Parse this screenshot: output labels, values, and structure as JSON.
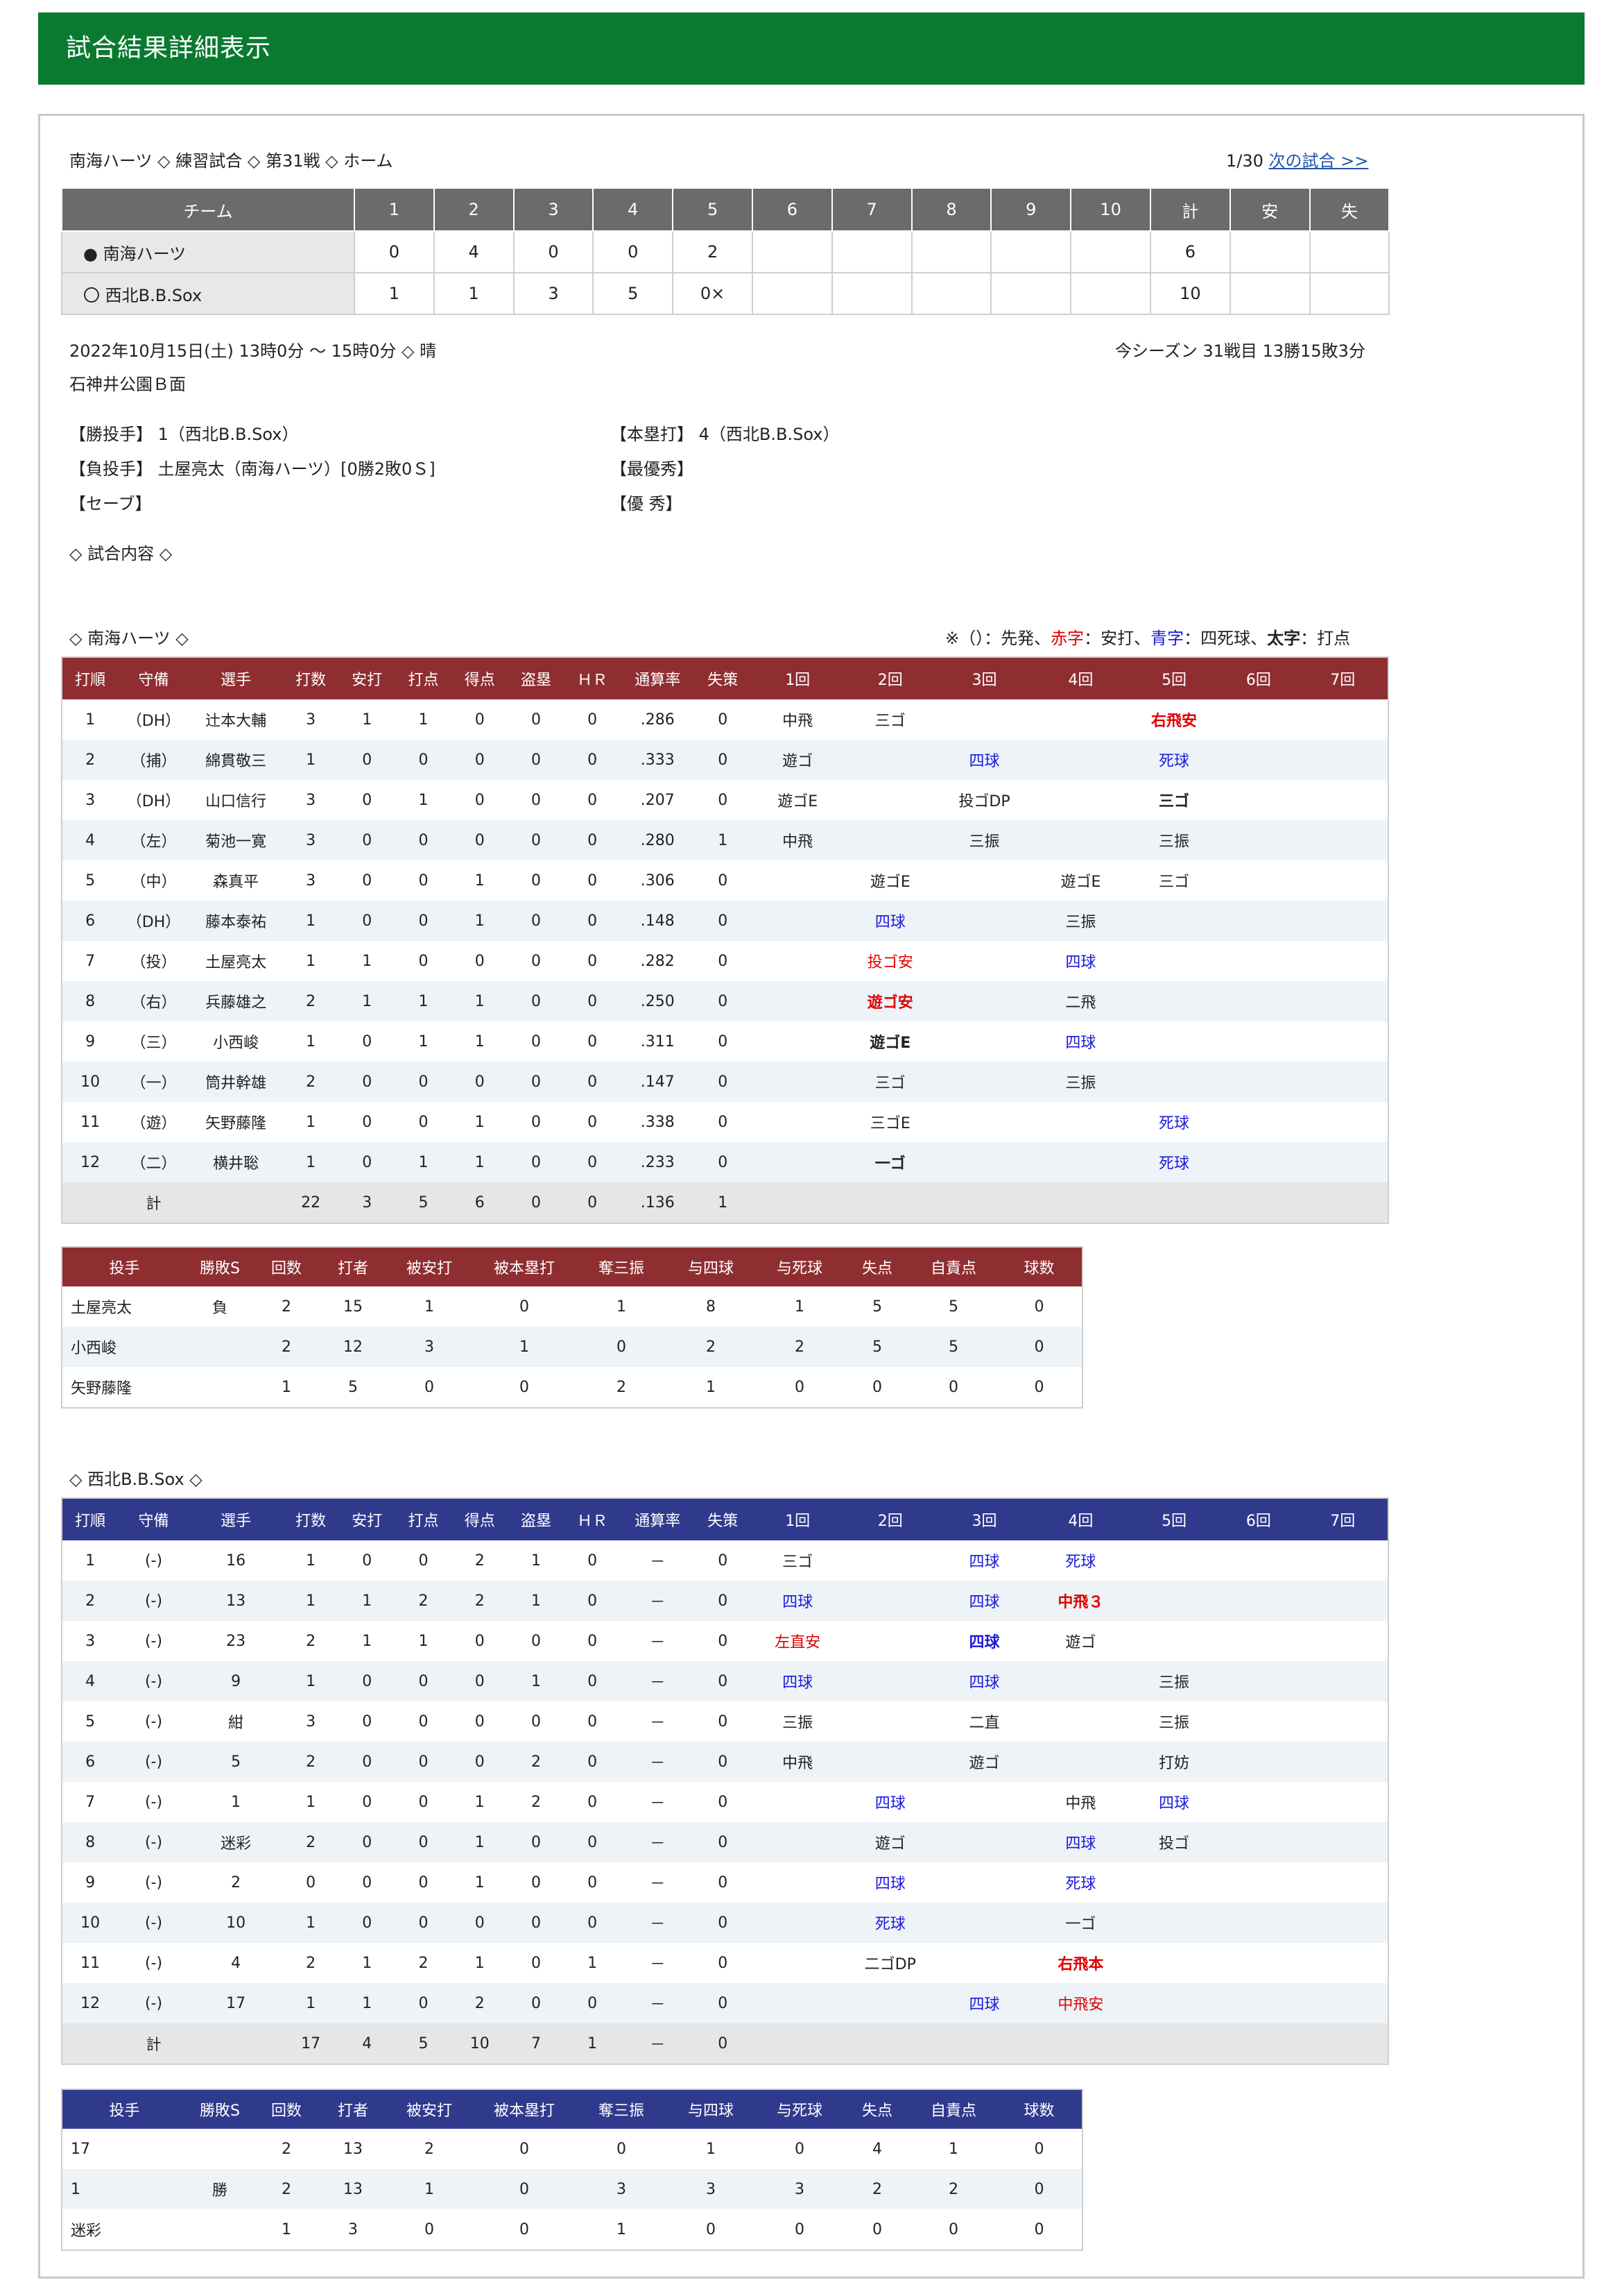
{
  "header": {
    "title": "試合結果詳細表示"
  },
  "match": {
    "line": "南海ハーツ ◇ 練習試合 ◇ 第31戦 ◇ ホーム",
    "pager": "1/30",
    "next": "次の試合 >>",
    "datetime": "2022年10月15日(土) 13時0分 ～ 15時0分 ◇ 晴",
    "season": "今シーズン 31戦目 13勝15敗3分",
    "venue": "石神井公園Ｂ面",
    "win_pitcher": "【勝投手】 1（西北B.B.Sox）",
    "lose_pitcher": "【負投手】 土屋亮太（南海ハーツ）[0勝2敗0Ｓ]",
    "save": "【セーブ】",
    "homerun": "【本塁打】 4（西北B.B.Sox）",
    "mvp": "【最優秀】",
    "excellent": "【優 秀】",
    "contents": "◇ 試合内容 ◇"
  },
  "score": {
    "headers": [
      "チーム",
      "1",
      "2",
      "3",
      "4",
      "5",
      "6",
      "7",
      "8",
      "9",
      "10",
      "計",
      "安",
      "失"
    ],
    "rows": [
      {
        "team": "● 南海ハーツ",
        "cells": [
          "0",
          "4",
          "0",
          "0",
          "2",
          "",
          "",
          "",
          "",
          "",
          "6",
          "",
          ""
        ]
      },
      {
        "team": "〇 西北B.B.Sox",
        "cells": [
          "1",
          "1",
          "3",
          "5",
          "0×",
          "",
          "",
          "",
          "",
          "",
          "10",
          "",
          ""
        ]
      }
    ]
  },
  "legend": {
    "pre": "※（）：先発、",
    "red": "赤字",
    "mid1": "：安打、",
    "blue": "青字",
    "mid2": "：四死球、",
    "bold": "太字",
    "post": "：打点"
  },
  "home": {
    "label": "◇ 南海ハーツ ◇",
    "headers": [
      "打順",
      "守備",
      "選手",
      "打数",
      "安打",
      "打点",
      "得点",
      "盗塁",
      "ＨＲ",
      "通算率",
      "失策",
      "1回",
      "2回",
      "3回",
      "4回",
      "5回",
      "6回",
      "7回"
    ],
    "rows": [
      [
        "1",
        "（DH）",
        "辻本大輔",
        "3",
        "1",
        "1",
        "0",
        "0",
        "0",
        ".286",
        "0",
        "中飛",
        "三ゴ",
        "",
        "",
        "右飛安",
        "",
        ""
      ],
      [
        "2",
        "（捕）",
        "綿貫敬三",
        "1",
        "0",
        "0",
        "0",
        "0",
        "0",
        ".333",
        "0",
        "遊ゴ",
        "",
        "四球",
        "",
        "死球",
        "",
        ""
      ],
      [
        "3",
        "（DH）",
        "山口信行",
        "3",
        "0",
        "1",
        "0",
        "0",
        "0",
        ".207",
        "0",
        "遊ゴE",
        "",
        "投ゴDP",
        "",
        "三ゴ",
        "",
        ""
      ],
      [
        "4",
        "（左）",
        "菊池一寛",
        "3",
        "0",
        "0",
        "0",
        "0",
        "0",
        ".280",
        "1",
        "中飛",
        "",
        "三振",
        "",
        "三振",
        "",
        ""
      ],
      [
        "5",
        "（中）",
        "森真平",
        "3",
        "0",
        "0",
        "1",
        "0",
        "0",
        ".306",
        "0",
        "",
        "遊ゴE",
        "",
        "遊ゴE",
        "三ゴ",
        "",
        ""
      ],
      [
        "6",
        "（DH）",
        "藤本泰祐",
        "1",
        "0",
        "0",
        "1",
        "0",
        "0",
        ".148",
        "0",
        "",
        "四球",
        "",
        "三振",
        "",
        "",
        ""
      ],
      [
        "7",
        "（投）",
        "土屋亮太",
        "1",
        "1",
        "0",
        "0",
        "0",
        "0",
        ".282",
        "0",
        "",
        "投ゴ安",
        "",
        "四球",
        "",
        "",
        ""
      ],
      [
        "8",
        "（右）",
        "兵藤雄之",
        "2",
        "1",
        "1",
        "1",
        "0",
        "0",
        ".250",
        "0",
        "",
        "遊ゴ安",
        "",
        "二飛",
        "",
        "",
        ""
      ],
      [
        "9",
        "（三）",
        "小西峻",
        "1",
        "0",
        "1",
        "1",
        "0",
        "0",
        ".311",
        "0",
        "",
        "遊ゴE",
        "",
        "四球",
        "",
        "",
        ""
      ],
      [
        "10",
        "（一）",
        "筒井幹雄",
        "2",
        "0",
        "0",
        "0",
        "0",
        "0",
        ".147",
        "0",
        "",
        "三ゴ",
        "",
        "三振",
        "",
        "",
        ""
      ],
      [
        "11",
        "（遊）",
        "矢野藤隆",
        "1",
        "0",
        "0",
        "1",
        "0",
        "0",
        ".338",
        "0",
        "",
        "三ゴE",
        "",
        "",
        "死球",
        "",
        ""
      ],
      [
        "12",
        "（二）",
        "横井聡",
        "1",
        "0",
        "1",
        "1",
        "0",
        "0",
        ".233",
        "0",
        "",
        "一ゴ",
        "",
        "",
        "死球",
        "",
        ""
      ]
    ],
    "styles": [
      [
        "",
        "",
        "",
        "",
        "rb",
        "",
        ""
      ],
      [
        "",
        "",
        "b",
        "",
        "b",
        "",
        ""
      ],
      [
        "",
        "",
        "",
        "",
        "bold",
        "",
        ""
      ],
      [
        "",
        "",
        "",
        "",
        "",
        "",
        ""
      ],
      [
        "",
        "",
        "",
        "",
        "",
        "",
        ""
      ],
      [
        "",
        "b",
        "",
        "",
        "",
        "",
        ""
      ],
      [
        "",
        "r",
        "",
        "b",
        "",
        "",
        ""
      ],
      [
        "",
        "rb",
        "",
        "",
        "",
        "",
        ""
      ],
      [
        "",
        "bold",
        "",
        "b",
        "",
        "",
        ""
      ],
      [
        "",
        "",
        "",
        "",
        "",
        "",
        ""
      ],
      [
        "",
        "",
        "",
        "",
        "b",
        "",
        ""
      ],
      [
        "",
        "bold",
        "",
        "",
        "b",
        "",
        ""
      ]
    ],
    "total": [
      "",
      "計",
      "",
      "22",
      "3",
      "5",
      "6",
      "0",
      "0",
      ".136",
      "1",
      "",
      "",
      "",
      "",
      "",
      "",
      ""
    ],
    "pitchers": {
      "headers": [
        "投手",
        "勝敗S",
        "回数",
        "打者",
        "被安打",
        "被本塁打",
        "奪三振",
        "与四球",
        "与死球",
        "失点",
        "自責点",
        "球数"
      ],
      "rows": [
        [
          "土屋亮太",
          "負",
          "2",
          "15",
          "1",
          "0",
          "1",
          "8",
          "1",
          "5",
          "5",
          "0"
        ],
        [
          "小西峻",
          "",
          "2",
          "12",
          "3",
          "1",
          "0",
          "2",
          "2",
          "5",
          "5",
          "0"
        ],
        [
          "矢野藤隆",
          "",
          "1",
          "5",
          "0",
          "0",
          "2",
          "1",
          "0",
          "0",
          "0",
          "0"
        ]
      ]
    }
  },
  "away": {
    "label": "◇ 西北B.B.Sox ◇",
    "headers": [
      "打順",
      "守備",
      "選手",
      "打数",
      "安打",
      "打点",
      "得点",
      "盗塁",
      "ＨＲ",
      "通算率",
      "失策",
      "1回",
      "2回",
      "3回",
      "4回",
      "5回",
      "6回",
      "7回"
    ],
    "rows": [
      [
        "1",
        "(-)",
        "16",
        "1",
        "0",
        "0",
        "2",
        "1",
        "0",
        "－",
        "0",
        "三ゴ",
        "",
        "四球",
        "死球",
        "",
        "",
        ""
      ],
      [
        "2",
        "(-)",
        "13",
        "1",
        "1",
        "2",
        "2",
        "1",
        "0",
        "－",
        "0",
        "四球",
        "",
        "四球",
        "中飛３",
        "",
        "",
        ""
      ],
      [
        "3",
        "(-)",
        "23",
        "2",
        "1",
        "1",
        "0",
        "0",
        "0",
        "－",
        "0",
        "左直安",
        "",
        "四球",
        "遊ゴ",
        "",
        "",
        ""
      ],
      [
        "4",
        "(-)",
        "9",
        "1",
        "0",
        "0",
        "0",
        "1",
        "0",
        "－",
        "0",
        "四球",
        "",
        "四球",
        "",
        "三振",
        "",
        ""
      ],
      [
        "5",
        "(-)",
        "紺",
        "3",
        "0",
        "0",
        "0",
        "0",
        "0",
        "－",
        "0",
        "三振",
        "",
        "二直",
        "",
        "三振",
        "",
        ""
      ],
      [
        "6",
        "(-)",
        "5",
        "2",
        "0",
        "0",
        "0",
        "2",
        "0",
        "－",
        "0",
        "中飛",
        "",
        "遊ゴ",
        "",
        "打妨",
        "",
        ""
      ],
      [
        "7",
        "(-)",
        "1",
        "1",
        "0",
        "0",
        "1",
        "2",
        "0",
        "－",
        "0",
        "",
        "四球",
        "",
        "中飛",
        "四球",
        "",
        ""
      ],
      [
        "8",
        "(-)",
        "迷彩",
        "2",
        "0",
        "0",
        "1",
        "0",
        "0",
        "－",
        "0",
        "",
        "遊ゴ",
        "",
        "四球",
        "投ゴ",
        "",
        ""
      ],
      [
        "9",
        "(-)",
        "2",
        "0",
        "0",
        "0",
        "1",
        "0",
        "0",
        "－",
        "0",
        "",
        "四球",
        "",
        "死球",
        "",
        "",
        ""
      ],
      [
        "10",
        "(-)",
        "10",
        "1",
        "0",
        "0",
        "0",
        "0",
        "0",
        "－",
        "0",
        "",
        "死球",
        "",
        "一ゴ",
        "",
        "",
        ""
      ],
      [
        "11",
        "(-)",
        "4",
        "2",
        "1",
        "2",
        "1",
        "0",
        "1",
        "－",
        "0",
        "",
        "二ゴDP",
        "",
        "右飛本",
        "",
        "",
        ""
      ],
      [
        "12",
        "(-)",
        "17",
        "1",
        "1",
        "0",
        "2",
        "0",
        "0",
        "－",
        "0",
        "",
        "",
        "四球",
        "中飛安",
        "",
        "",
        ""
      ]
    ],
    "styles": [
      [
        "",
        "",
        "b",
        "b",
        "",
        "",
        ""
      ],
      [
        "b",
        "",
        "b",
        "rb",
        "",
        "",
        ""
      ],
      [
        "r",
        "",
        "bb",
        "",
        "",
        "",
        ""
      ],
      [
        "b",
        "",
        "b",
        "",
        "",
        "",
        ""
      ],
      [
        "",
        "",
        "",
        "",
        "",
        "",
        ""
      ],
      [
        "",
        "",
        "",
        "",
        "",
        "",
        ""
      ],
      [
        "",
        "b",
        "",
        "",
        "b",
        "",
        ""
      ],
      [
        "",
        "",
        "",
        "b",
        "",
        "",
        ""
      ],
      [
        "",
        "b",
        "",
        "b",
        "",
        "",
        ""
      ],
      [
        "",
        "b",
        "",
        "",
        "",
        "",
        ""
      ],
      [
        "",
        "",
        "",
        "rb",
        "",
        "",
        ""
      ],
      [
        "",
        "",
        "b",
        "r",
        "",
        "",
        ""
      ]
    ],
    "total": [
      "",
      "計",
      "",
      "17",
      "4",
      "5",
      "10",
      "7",
      "1",
      "－",
      "0",
      "",
      "",
      "",
      "",
      "",
      "",
      ""
    ],
    "pitchers": {
      "headers": [
        "投手",
        "勝敗S",
        "回数",
        "打者",
        "被安打",
        "被本塁打",
        "奪三振",
        "与四球",
        "与死球",
        "失点",
        "自責点",
        "球数"
      ],
      "rows": [
        [
          "17",
          "",
          "2",
          "13",
          "2",
          "0",
          "0",
          "1",
          "0",
          "4",
          "1",
          "0"
        ],
        [
          "1",
          "勝",
          "2",
          "13",
          "1",
          "0",
          "3",
          "3",
          "3",
          "2",
          "2",
          "0"
        ],
        [
          "迷彩",
          "",
          "1",
          "3",
          "0",
          "0",
          "1",
          "0",
          "0",
          "0",
          "0",
          "0"
        ]
      ]
    }
  },
  "colors": {
    "header": "#0a7a30",
    "home_table": "#8f2e31",
    "away_table": "#303a8d",
    "hit": "#e00000",
    "walk": "#1a1adc"
  }
}
